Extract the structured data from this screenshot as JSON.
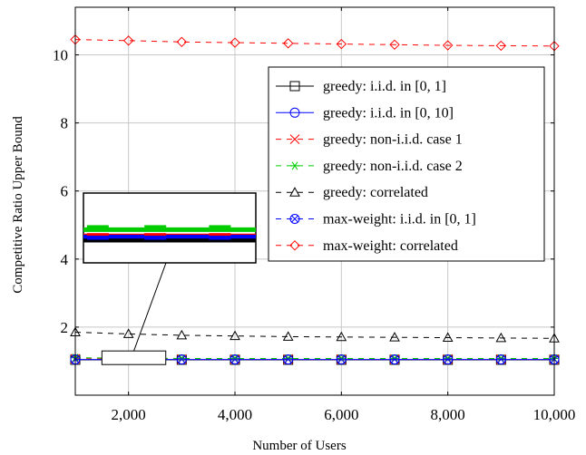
{
  "chart_data": {
    "type": "line",
    "title": "",
    "xlabel": "Number of Users",
    "ylabel": "Competitive Ratio Upper Bound",
    "xlim": [
      1000,
      10000
    ],
    "ylim": [
      0,
      11.4
    ],
    "grid": true,
    "legend_position": "top-right",
    "x_ticks": [
      2000,
      4000,
      6000,
      8000,
      10000
    ],
    "x_tick_labels": [
      "2,000",
      "4,000",
      "6,000",
      "8,000",
      "10,000"
    ],
    "y_ticks": [
      2,
      4,
      6,
      8,
      10
    ],
    "y_tick_labels": [
      "2",
      "4",
      "6",
      "8",
      "10"
    ],
    "x": [
      1000,
      2000,
      3000,
      4000,
      5000,
      6000,
      7000,
      8000,
      9000,
      10000
    ],
    "series": [
      {
        "name": "greedy: i.i.d. in [0, 1]",
        "color": "#000000",
        "dash": "solid",
        "marker": "square",
        "values": [
          1.04,
          1.04,
          1.04,
          1.04,
          1.04,
          1.04,
          1.04,
          1.04,
          1.04,
          1.04
        ]
      },
      {
        "name": "greedy: i.i.d. in [0, 10]",
        "color": "#0000ff",
        "dash": "solid",
        "marker": "circle",
        "values": [
          1.05,
          1.05,
          1.05,
          1.05,
          1.05,
          1.05,
          1.05,
          1.05,
          1.05,
          1.05
        ]
      },
      {
        "name": "greedy: non-i.i.d. case 1",
        "color": "#ff0000",
        "dash": "dashed",
        "marker": "x",
        "values": [
          1.07,
          1.06,
          1.06,
          1.06,
          1.06,
          1.06,
          1.06,
          1.06,
          1.06,
          1.06
        ]
      },
      {
        "name": "greedy: non-i.i.d. case 2",
        "color": "#00cc00",
        "dash": "dashed",
        "marker": "asterisk",
        "values": [
          1.1,
          1.09,
          1.08,
          1.08,
          1.08,
          1.08,
          1.08,
          1.08,
          1.08,
          1.08
        ]
      },
      {
        "name": "greedy: correlated",
        "color": "#000000",
        "dash": "dashed",
        "marker": "triangle",
        "values": [
          1.85,
          1.8,
          1.76,
          1.74,
          1.72,
          1.71,
          1.7,
          1.69,
          1.68,
          1.67
        ]
      },
      {
        "name": "max-weight: i.i.d. in [0, 1]",
        "color": "#0000ff",
        "dash": "dashed",
        "marker": "otimes",
        "values": [
          1.05,
          1.05,
          1.05,
          1.05,
          1.05,
          1.05,
          1.05,
          1.05,
          1.05,
          1.05
        ]
      },
      {
        "name": "max-weight: correlated",
        "color": "#ff0000",
        "dash": "dashed",
        "marker": "diamond",
        "values": [
          10.45,
          10.42,
          10.38,
          10.36,
          10.34,
          10.32,
          10.3,
          10.28,
          10.27,
          10.26
        ]
      }
    ],
    "inset": {
      "description": "magnified view of the overlapping series near y = 1",
      "xlim": [
        1500,
        2700
      ],
      "ylim": [
        0.9,
        1.3
      ]
    }
  }
}
